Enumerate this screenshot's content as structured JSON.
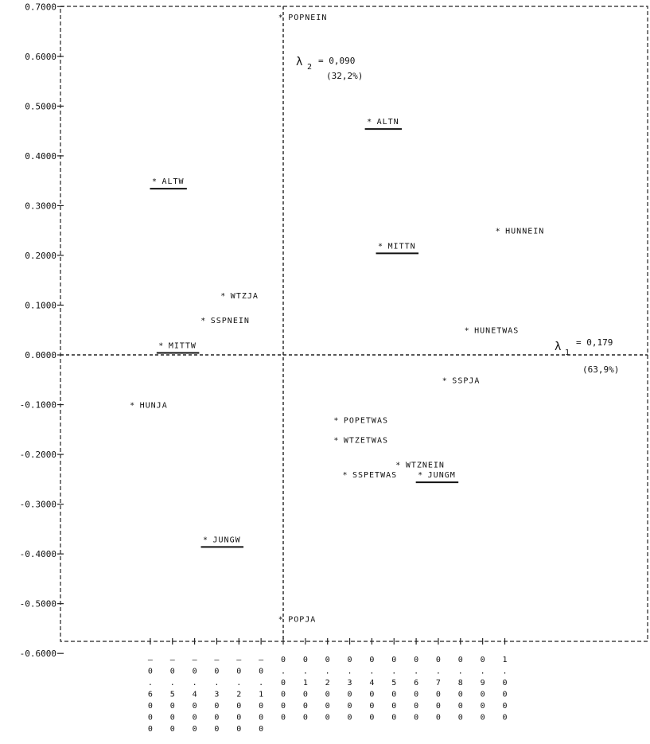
{
  "chart_data": {
    "type": "scatter",
    "title": "",
    "xlabel": "",
    "ylabel": "",
    "xlim": [
      -0.7,
      1.0
    ],
    "ylim": [
      -0.6,
      0.7
    ],
    "x_ticks": [
      -0.6,
      -0.5,
      -0.4,
      -0.3,
      -0.2,
      -0.1,
      0.0,
      0.1,
      0.2,
      0.3,
      0.4,
      0.5,
      0.6,
      0.7,
      0.8,
      0.9,
      1.0
    ],
    "x_tick_labels": [
      "-0.6000",
      "-0.5000",
      "-0.4000",
      "-0.3000",
      "-0.2000",
      "-0.1000",
      "0.0000",
      "0.1000",
      "0.2000",
      "0.3000",
      "0.4000",
      "0.5000",
      "0.6000",
      "0.7000",
      "0.8000",
      "0.9000",
      "1.0000"
    ],
    "y_ticks": [
      0.7,
      0.6,
      0.5,
      0.4,
      0.3,
      0.2,
      0.1,
      0.0,
      -0.1,
      -0.2,
      -0.3,
      -0.4,
      -0.5,
      -0.6
    ],
    "y_tick_labels": [
      "0.7000",
      "0.6000",
      "0.5000",
      "0.4000",
      "0.3000",
      "0.2000",
      "0.1000",
      "0.0000",
      "-0.1000",
      "-0.2000",
      "-0.3000",
      "-0.4000",
      "-0.5000",
      "-0.6000"
    ],
    "grid": false,
    "points": [
      {
        "label": "POPNEIN",
        "x": -0.01,
        "y": 0.68,
        "underline": false
      },
      {
        "label": "ALTW",
        "x": -0.58,
        "y": 0.35,
        "underline": true
      },
      {
        "label": "ALTN",
        "x": 0.39,
        "y": 0.47,
        "underline": true
      },
      {
        "label": "MITTN",
        "x": 0.44,
        "y": 0.22,
        "underline": true
      },
      {
        "label": "HUNNEIN",
        "x": 0.97,
        "y": 0.25,
        "underline": false
      },
      {
        "label": "WTZJA",
        "x": -0.27,
        "y": 0.12,
        "underline": false
      },
      {
        "label": "SSPNEIN",
        "x": -0.36,
        "y": 0.07,
        "underline": false
      },
      {
        "label": "MITTW",
        "x": -0.55,
        "y": 0.02,
        "underline": true
      },
      {
        "label": "HUNETWAS",
        "x": 0.83,
        "y": 0.05,
        "underline": false
      },
      {
        "label": "SSPJA",
        "x": 0.73,
        "y": -0.05,
        "underline": false
      },
      {
        "label": "HUNJA",
        "x": -0.68,
        "y": -0.1,
        "underline": false
      },
      {
        "label": "POPETWAS",
        "x": 0.24,
        "y": -0.13,
        "underline": false
      },
      {
        "label": "WTZETWAS",
        "x": 0.24,
        "y": -0.17,
        "underline": false
      },
      {
        "label": "WTZNEIN",
        "x": 0.52,
        "y": -0.22,
        "underline": false
      },
      {
        "label": "SSPETWAS",
        "x": 0.28,
        "y": -0.24,
        "underline": false
      },
      {
        "label": "JUNGM",
        "x": 0.62,
        "y": -0.24,
        "underline": true
      },
      {
        "label": "JUNGW",
        "x": -0.35,
        "y": -0.37,
        "underline": true
      },
      {
        "label": "POPJA",
        "x": -0.01,
        "y": -0.53,
        "underline": false
      }
    ],
    "annotations": {
      "lambda2": {
        "symbol": "λ",
        "subscript": "2",
        "text": "= 0,090",
        "percent": "(32,2%)"
      },
      "lambda1": {
        "symbol": "λ",
        "subscript": "1",
        "text": "= 0,179",
        "percent": "(63,9%)"
      }
    }
  }
}
